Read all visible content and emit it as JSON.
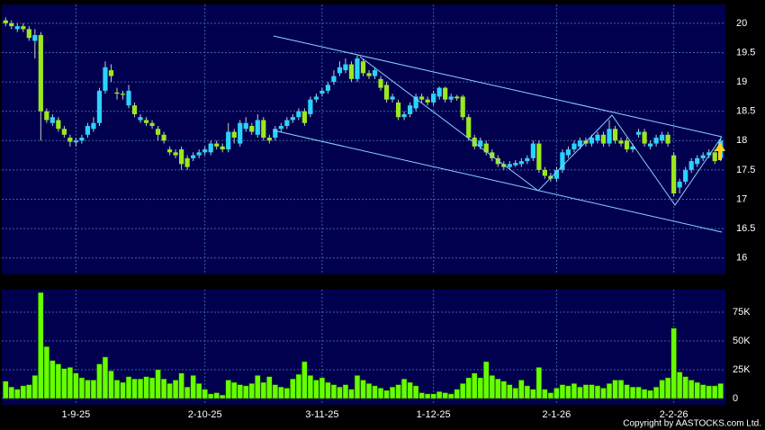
{
  "chart_data": [
    {
      "type": "candlestick",
      "up_color": "#29d3ff",
      "down_color": "#9be81e",
      "wick_color": "#c8c8c8",
      "panel_color": "#00004e",
      "grid": true,
      "ylim": [
        15.72,
        20.32
      ],
      "yticks": [
        16,
        16.5,
        17,
        17.5,
        18,
        18.5,
        19,
        19.5,
        20
      ],
      "open": [
        20.05,
        20.0,
        19.9,
        19.95,
        19.9,
        19.7,
        19.8,
        18.5,
        18.3,
        18.35,
        18.2,
        18.05,
        17.97,
        18.0,
        18.1,
        18.2,
        18.3,
        18.85,
        19.2,
        18.82,
        18.8,
        18.6,
        18.6,
        18.35,
        18.35,
        18.3,
        18.2,
        18.1,
        17.85,
        17.8,
        17.85,
        17.7,
        17.7,
        17.75,
        17.8,
        17.8,
        17.95,
        17.9,
        17.85,
        18.15,
        17.95,
        18.2,
        18.25,
        18.1,
        18.35,
        18.05,
        18.05,
        18.2,
        18.25,
        18.35,
        18.4,
        18.5,
        18.45,
        18.7,
        18.8,
        18.85,
        19.0,
        19.15,
        19.2,
        19.3,
        19.05,
        19.35,
        19.15,
        19.1,
        19.05,
        18.95,
        18.7,
        18.65,
        18.4,
        18.45,
        18.55,
        18.75,
        18.7,
        18.65,
        18.75,
        18.9,
        18.7,
        18.75,
        18.75,
        18.4,
        18.05,
        17.9,
        17.95,
        17.8,
        17.7,
        17.6,
        17.55,
        17.58,
        17.6,
        17.65,
        17.7,
        17.95,
        17.5,
        17.4,
        17.35,
        17.5,
        17.75,
        17.85,
        17.9,
        18.0,
        17.95,
        18.0,
        18.1,
        17.95,
        18.2,
        18.0,
        18.0,
        17.85,
        18.1,
        18.15,
        17.9,
        17.95,
        18.0,
        18.1,
        17.75,
        17.2,
        17.3,
        17.5,
        17.6,
        17.7,
        17.75,
        17.8,
        17.7
      ],
      "high": [
        20.1,
        20.05,
        20.0,
        20.0,
        19.95,
        19.9,
        19.85,
        18.55,
        18.45,
        18.4,
        18.25,
        18.1,
        18.05,
        18.1,
        18.3,
        18.4,
        18.9,
        19.35,
        19.3,
        18.9,
        18.85,
        18.95,
        18.65,
        18.45,
        18.4,
        18.35,
        18.25,
        18.15,
        17.9,
        17.85,
        17.9,
        17.75,
        17.8,
        17.85,
        17.9,
        18.0,
        18.0,
        17.95,
        18.3,
        18.2,
        18.35,
        18.4,
        18.3,
        18.45,
        18.4,
        18.1,
        18.25,
        18.3,
        18.4,
        18.45,
        18.55,
        18.55,
        18.75,
        18.8,
        18.9,
        19.0,
        19.2,
        19.35,
        19.4,
        19.35,
        19.45,
        19.4,
        19.2,
        19.25,
        19.1,
        19.0,
        18.8,
        18.7,
        18.5,
        18.65,
        18.8,
        18.8,
        18.75,
        18.85,
        18.92,
        18.92,
        18.8,
        18.78,
        18.78,
        18.45,
        18.1,
        18.05,
        18.0,
        17.85,
        17.75,
        17.65,
        17.65,
        17.67,
        17.7,
        17.75,
        18.0,
        18.0,
        17.55,
        17.45,
        17.55,
        17.85,
        17.9,
        18.0,
        18.05,
        18.05,
        18.1,
        18.15,
        18.15,
        18.35,
        18.25,
        18.05,
        18.05,
        17.95,
        18.2,
        18.2,
        18.0,
        18.1,
        18.15,
        18.15,
        17.8,
        17.35,
        17.55,
        17.7,
        17.75,
        17.8,
        17.85,
        17.85,
        18.05
      ],
      "low": [
        19.95,
        19.9,
        19.85,
        19.85,
        19.7,
        19.4,
        18.0,
        18.3,
        18.25,
        18.15,
        18.05,
        17.9,
        17.9,
        17.95,
        18.05,
        18.15,
        18.25,
        18.8,
        19.0,
        18.7,
        18.7,
        18.55,
        18.4,
        18.3,
        18.25,
        18.2,
        18.0,
        17.95,
        17.75,
        17.7,
        17.5,
        17.5,
        17.65,
        17.7,
        17.75,
        17.75,
        17.85,
        17.8,
        17.8,
        17.95,
        17.9,
        18.15,
        18.1,
        18.05,
        18.0,
        17.95,
        18.0,
        18.15,
        18.2,
        18.3,
        18.35,
        18.25,
        18.4,
        18.65,
        18.75,
        18.8,
        18.95,
        19.1,
        19.15,
        19.0,
        19.0,
        19.1,
        19.05,
        19.05,
        18.85,
        18.65,
        18.65,
        18.35,
        18.35,
        18.4,
        18.5,
        18.65,
        18.6,
        18.6,
        18.7,
        18.65,
        18.65,
        18.68,
        18.35,
        18.0,
        17.85,
        17.85,
        17.75,
        17.65,
        17.55,
        17.5,
        17.5,
        17.55,
        17.55,
        17.6,
        17.65,
        17.45,
        17.35,
        17.3,
        17.3,
        17.45,
        17.7,
        17.8,
        17.85,
        17.9,
        17.9,
        17.95,
        17.9,
        17.9,
        17.95,
        17.9,
        17.8,
        17.8,
        18.05,
        17.9,
        17.85,
        17.9,
        17.95,
        17.9,
        17.05,
        17.1,
        17.25,
        17.45,
        17.55,
        17.65,
        17.7,
        17.6,
        17.65
      ],
      "close": [
        20.0,
        19.95,
        19.95,
        19.9,
        19.75,
        19.8,
        18.5,
        18.35,
        18.4,
        18.2,
        18.1,
        17.98,
        18.0,
        18.05,
        18.25,
        18.3,
        18.85,
        19.25,
        19.1,
        18.8,
        18.78,
        18.85,
        18.45,
        18.4,
        18.3,
        18.25,
        18.1,
        18.0,
        17.8,
        17.75,
        17.6,
        17.55,
        17.75,
        17.8,
        17.85,
        17.95,
        17.9,
        17.85,
        18.15,
        18.05,
        18.3,
        18.3,
        18.15,
        18.35,
        18.05,
        18.0,
        18.2,
        18.25,
        18.35,
        18.4,
        18.5,
        18.3,
        18.7,
        18.75,
        18.85,
        18.95,
        19.1,
        19.25,
        19.3,
        19.05,
        19.4,
        19.15,
        19.1,
        19.2,
        18.9,
        18.7,
        18.75,
        18.4,
        18.45,
        18.6,
        18.75,
        18.7,
        18.65,
        18.8,
        18.9,
        18.7,
        18.75,
        18.72,
        18.4,
        18.05,
        17.9,
        18.0,
        17.8,
        17.7,
        17.6,
        17.55,
        17.6,
        17.62,
        17.65,
        17.7,
        17.95,
        17.5,
        17.4,
        17.35,
        17.5,
        17.8,
        17.85,
        17.95,
        18.0,
        17.95,
        18.05,
        18.1,
        17.95,
        18.2,
        18.0,
        17.95,
        17.85,
        17.9,
        18.15,
        17.95,
        17.95,
        18.05,
        18.1,
        17.95,
        17.1,
        17.3,
        17.5,
        17.65,
        17.7,
        17.75,
        17.8,
        17.65,
        18.0
      ]
    },
    {
      "type": "bar",
      "color": "#66ff00",
      "edge_color": "#1a4a00",
      "panel_color": "#00004e",
      "grid": true,
      "ylim": [
        -5500,
        94500
      ],
      "yticks": [
        0,
        {
          "value": 25000,
          "label": "25K"
        },
        {
          "value": 50000,
          "label": "50K"
        },
        {
          "value": 75000,
          "label": "75K"
        }
      ],
      "categories": [
        null,
        null,
        null,
        null,
        null,
        null,
        null,
        null,
        null,
        null,
        null,
        null,
        "1-9-25",
        null,
        null,
        null,
        null,
        null,
        null,
        null,
        null,
        null,
        null,
        null,
        null,
        null,
        null,
        null,
        null,
        null,
        null,
        null,
        null,
        null,
        "2-10-25",
        null,
        null,
        null,
        null,
        null,
        null,
        null,
        null,
        null,
        null,
        null,
        null,
        null,
        null,
        null,
        null,
        null,
        null,
        null,
        "3-11-25",
        null,
        null,
        null,
        null,
        null,
        null,
        null,
        null,
        null,
        null,
        null,
        null,
        null,
        null,
        null,
        null,
        null,
        null,
        "1-12-25",
        null,
        null,
        null,
        null,
        null,
        null,
        null,
        null,
        null,
        null,
        null,
        null,
        null,
        null,
        null,
        null,
        null,
        null,
        null,
        null,
        "2-1-26",
        null,
        null,
        null,
        null,
        null,
        null,
        null,
        null,
        null,
        null,
        null,
        null,
        null,
        null,
        null,
        null,
        null,
        null,
        null,
        "2-2-26",
        null,
        null,
        null,
        null,
        null,
        null,
        null,
        null
      ],
      "values": [
        15000,
        10000,
        8000,
        11000,
        12000,
        20000,
        92000,
        45000,
        33000,
        30000,
        26000,
        27000,
        22000,
        18000,
        16000,
        16000,
        30000,
        36000,
        24000,
        16000,
        14000,
        19000,
        17000,
        17000,
        19000,
        18000,
        25000,
        17000,
        13000,
        16000,
        22000,
        10000,
        20000,
        13000,
        8000,
        4000,
        5000,
        3000,
        16000,
        14000,
        12000,
        11000,
        13000,
        20000,
        14000,
        19000,
        12000,
        10000,
        9000,
        17000,
        21000,
        32000,
        20000,
        16000,
        18000,
        14000,
        12000,
        10000,
        12000,
        8000,
        20000,
        16000,
        13000,
        11000,
        9000,
        7000,
        10000,
        12000,
        17000,
        14000,
        11000,
        5000,
        4000,
        4000,
        6000,
        5000,
        4000,
        8000,
        13000,
        18000,
        22000,
        18000,
        32000,
        20000,
        17000,
        15000,
        12000,
        9000,
        16000,
        11000,
        8000,
        27000,
        8000,
        5000,
        9000,
        12000,
        11000,
        13000,
        10000,
        12000,
        12000,
        11000,
        9000,
        13000,
        16000,
        16000,
        12000,
        10000,
        10000,
        8000,
        7000,
        10000,
        16000,
        18000,
        61000,
        23000,
        19000,
        16000,
        14000,
        12000,
        11000,
        11000,
        13000
      ]
    }
  ],
  "copyright": "Copyright by AASTOCKS.com Ltd."
}
